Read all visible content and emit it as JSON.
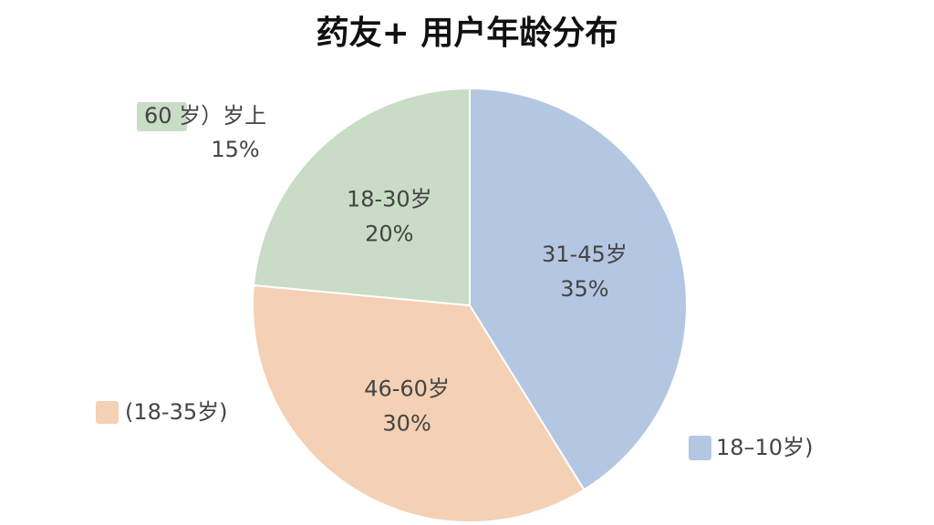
{
  "chart_data": {
    "type": "pie",
    "title": "药友+ 用户年龄分布",
    "categories": [
      "31-45岁",
      "46-60岁",
      "18-30岁"
    ],
    "values": [
      35,
      30,
      20
    ],
    "value_labels": [
      "35%",
      "30%",
      "20%"
    ],
    "colors": [
      "#b4c7e2",
      "#f4d0b4",
      "#c9dcc6"
    ],
    "legend": [
      {
        "name": "60 岁）岁上",
        "color": "#c9dcc6",
        "value": 15,
        "value_label": "15%"
      },
      {
        "name": "(18-35岁)",
        "color": "#f4d0b4"
      },
      {
        "name": "18–10岁)",
        "color": "#b4c7e2"
      }
    ]
  }
}
